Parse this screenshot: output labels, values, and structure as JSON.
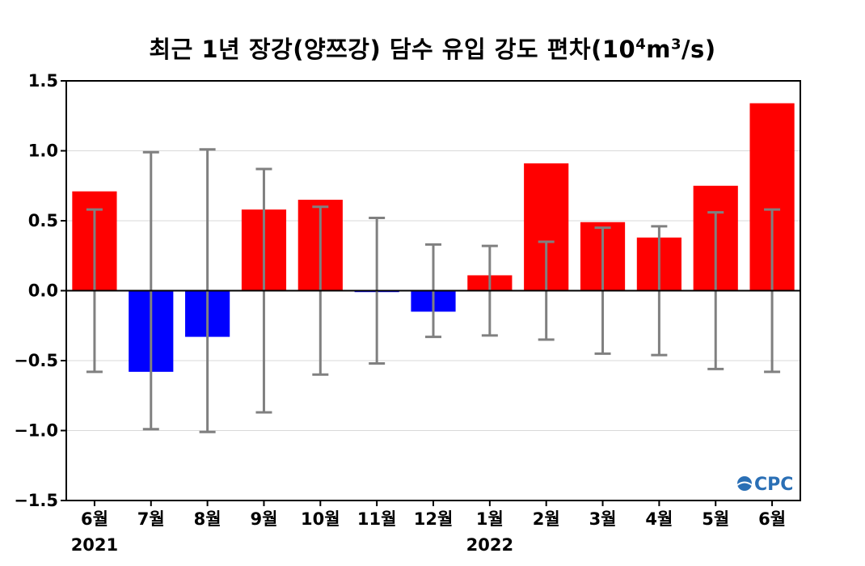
{
  "chart_data": {
    "type": "bar",
    "title_main": "최근 1년 장강(양쯔강) 담수 유입 강도 편차(10",
    "title_sup1": "4",
    "title_mid": "m",
    "title_sup2": "3",
    "title_end": "/s)",
    "categories": [
      "6월",
      "7월",
      "8월",
      "9월",
      "10월",
      "11월",
      "12월",
      "1월",
      "2월",
      "3월",
      "4월",
      "5월",
      "6월"
    ],
    "values": [
      0.71,
      -0.58,
      -0.33,
      0.58,
      0.65,
      -0.01,
      -0.15,
      0.11,
      0.91,
      0.49,
      0.38,
      0.75,
      1.34
    ],
    "error_bars": [
      0.58,
      0.99,
      1.01,
      0.87,
      0.6,
      0.52,
      0.33,
      0.32,
      0.35,
      0.45,
      0.46,
      0.56,
      0.58
    ],
    "year_labels": [
      {
        "label": "2021",
        "category_index": 0
      },
      {
        "label": "2022",
        "category_index": 7
      }
    ],
    "ylim": [
      -1.5,
      1.5
    ],
    "yticks": [
      "1.5",
      "1.0",
      "0.5",
      "0.0",
      "−0.5",
      "−1.0",
      "−1.5"
    ],
    "ytick_values": [
      1.5,
      1.0,
      0.5,
      0.0,
      -0.5,
      -1.0,
      -1.5
    ],
    "grid": "horizontal",
    "colors": {
      "positive": "#ff0000",
      "negative": "#0000ff",
      "error_bar": "#808080",
      "grid": "#d9d9d9"
    },
    "logo": "CPC"
  }
}
